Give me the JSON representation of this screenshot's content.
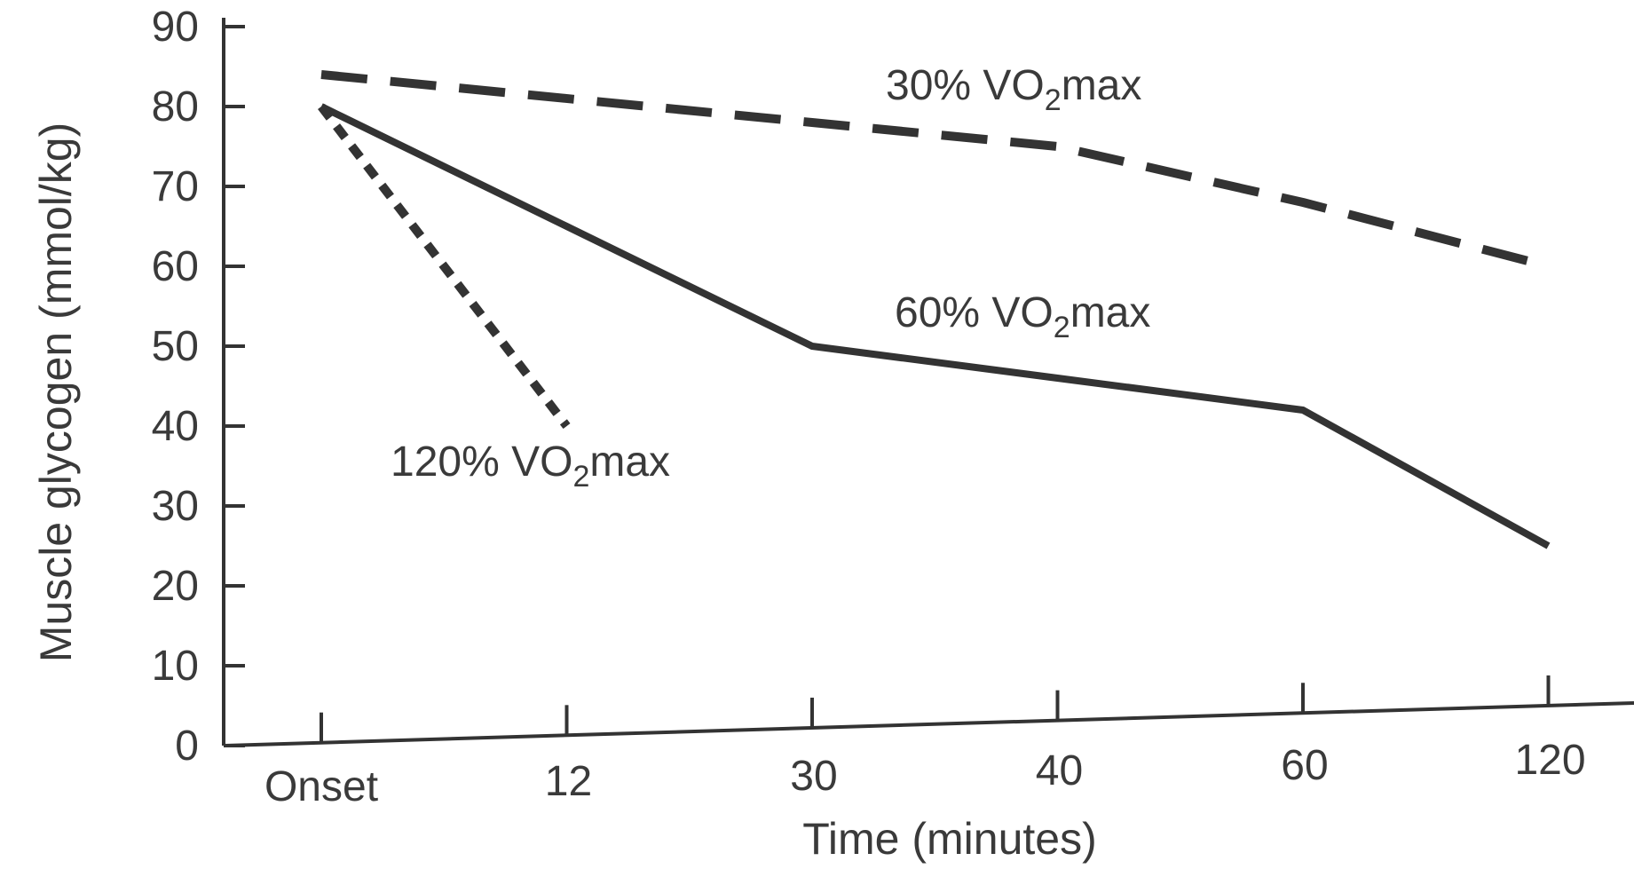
{
  "chart_data": {
    "type": "line",
    "xlabel": "Time (minutes)",
    "ylabel": "Muscle glycogen (mmol/kg)",
    "ylim": [
      0,
      90
    ],
    "yticks": [
      "0",
      "10",
      "20",
      "30",
      "40",
      "50",
      "60",
      "70",
      "80",
      "90"
    ],
    "categories": [
      "Onset",
      "12",
      "30",
      "40",
      "60",
      "120"
    ],
    "grid": false,
    "legend": "none (series labeled directly on plot)",
    "series": [
      {
        "name": "30% VO2max",
        "label_main": "30% VO",
        "label_sub": "2",
        "label_tail": "max",
        "style": "long-dash",
        "color": "#333333",
        "x": [
          "Onset",
          "30",
          "40",
          "60",
          "120"
        ],
        "values": [
          84,
          78,
          75,
          68,
          60
        ]
      },
      {
        "name": "60% VO2max",
        "label_main": "60% VO",
        "label_sub": "2",
        "label_tail": "max",
        "style": "solid",
        "color": "#333333",
        "x": [
          "Onset",
          "12",
          "30",
          "40",
          "60",
          "120"
        ],
        "values": [
          80,
          65,
          50,
          46,
          42,
          25
        ]
      },
      {
        "name": "120% VO2max",
        "label_main": "120% VO",
        "label_sub": "2",
        "label_tail": "max",
        "style": "short-dash",
        "color": "#333333",
        "x": [
          "Onset",
          "12"
        ],
        "values": [
          80,
          40
        ]
      }
    ]
  }
}
